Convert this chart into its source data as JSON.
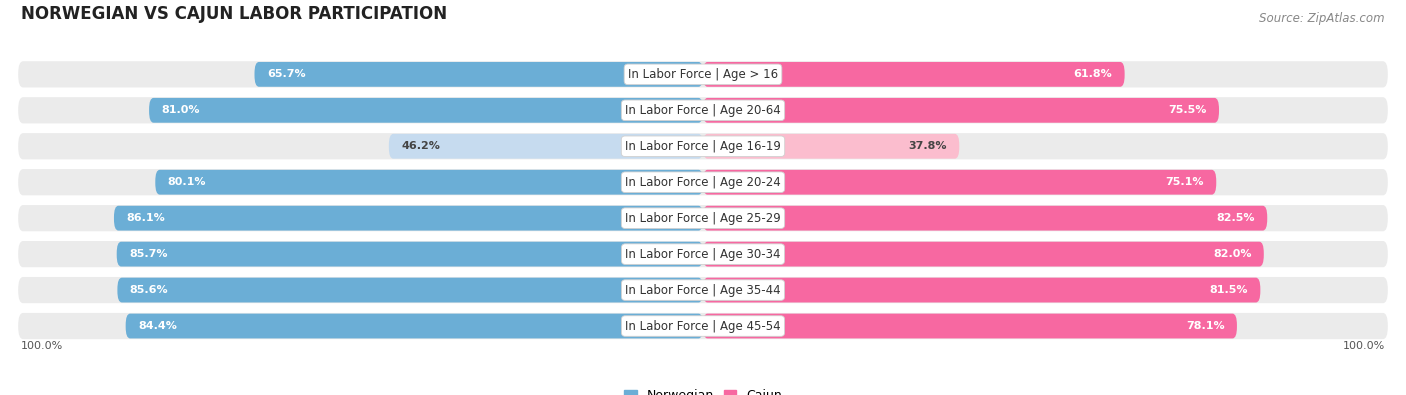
{
  "title": "NORWEGIAN VS CAJUN LABOR PARTICIPATION",
  "source": "Source: ZipAtlas.com",
  "categories": [
    "In Labor Force | Age > 16",
    "In Labor Force | Age 20-64",
    "In Labor Force | Age 16-19",
    "In Labor Force | Age 20-24",
    "In Labor Force | Age 25-29",
    "In Labor Force | Age 30-34",
    "In Labor Force | Age 35-44",
    "In Labor Force | Age 45-54"
  ],
  "norwegian_values": [
    65.7,
    81.0,
    46.2,
    80.1,
    86.1,
    85.7,
    85.6,
    84.4
  ],
  "cajun_values": [
    61.8,
    75.5,
    37.8,
    75.1,
    82.5,
    82.0,
    81.5,
    78.1
  ],
  "norwegian_color": "#6baed6",
  "cajun_color": "#f768a1",
  "norwegian_color_light": "#c6dbef",
  "cajun_color_light": "#fbbdce",
  "row_bg_color": "#e8e8e8",
  "row_bg_color2": "#f5f5f5",
  "background_color": "#ffffff",
  "title_fontsize": 12,
  "label_fontsize": 8.5,
  "value_fontsize": 8,
  "source_fontsize": 8.5,
  "axis_label_fontsize": 8,
  "legend_fontsize": 9
}
